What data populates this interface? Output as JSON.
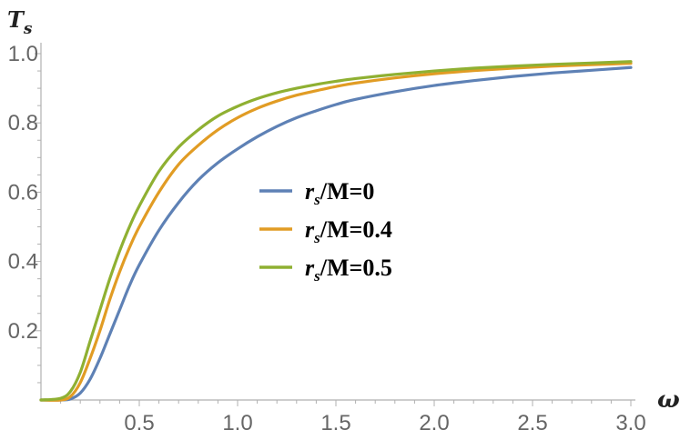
{
  "chart_data": {
    "type": "line",
    "ylabel": "T",
    "ylabel_sub": "s",
    "xlabel": "ω",
    "xlim": [
      0,
      3.0
    ],
    "ylim": [
      0,
      1.0
    ],
    "x_ticks": [
      {
        "value": 0.5,
        "label": "0.5"
      },
      {
        "value": 1.0,
        "label": "1.0"
      },
      {
        "value": 1.5,
        "label": "1.5"
      },
      {
        "value": 2.0,
        "label": "2.0"
      },
      {
        "value": 2.5,
        "label": "2.5"
      },
      {
        "value": 3.0,
        "label": "3.0"
      }
    ],
    "y_ticks": [
      {
        "value": 0.2,
        "label": "0.2"
      },
      {
        "value": 0.4,
        "label": "0.4"
      },
      {
        "value": 0.6,
        "label": "0.6"
      },
      {
        "value": 0.8,
        "label": "0.8"
      },
      {
        "value": 1.0,
        "label": "1.0"
      }
    ],
    "grid": false,
    "legend_position": "center",
    "series": [
      {
        "name": "r_s/M=0",
        "legend": {
          "var": "r",
          "sub": "s",
          "rest": "/M=0"
        },
        "color": "#5e81b5",
        "x": [
          0.0,
          0.1,
          0.15,
          0.2,
          0.25,
          0.3,
          0.35,
          0.4,
          0.45,
          0.5,
          0.6,
          0.7,
          0.8,
          0.9,
          1.0,
          1.1,
          1.2,
          1.3,
          1.4,
          1.5,
          1.6,
          1.8,
          2.0,
          2.2,
          2.4,
          2.6,
          2.8,
          3.0
        ],
        "y": [
          0.0,
          0.0,
          0.003,
          0.02,
          0.06,
          0.12,
          0.19,
          0.26,
          0.33,
          0.39,
          0.49,
          0.57,
          0.635,
          0.685,
          0.725,
          0.76,
          0.79,
          0.815,
          0.835,
          0.853,
          0.868,
          0.89,
          0.908,
          0.922,
          0.934,
          0.944,
          0.952,
          0.96
        ]
      },
      {
        "name": "r_s/M=0.4",
        "legend": {
          "var": "r",
          "sub": "s",
          "rest": "/M=0.4"
        },
        "color": "#e19c24",
        "x": [
          0.0,
          0.1,
          0.15,
          0.2,
          0.25,
          0.3,
          0.35,
          0.4,
          0.45,
          0.5,
          0.6,
          0.7,
          0.8,
          0.9,
          1.0,
          1.1,
          1.2,
          1.3,
          1.4,
          1.5,
          1.6,
          1.8,
          2.0,
          2.2,
          2.4,
          2.6,
          2.8,
          3.0
        ],
        "y": [
          0.0,
          0.0,
          0.01,
          0.05,
          0.12,
          0.2,
          0.29,
          0.37,
          0.44,
          0.5,
          0.6,
          0.68,
          0.735,
          0.78,
          0.815,
          0.842,
          0.863,
          0.88,
          0.893,
          0.905,
          0.915,
          0.93,
          0.942,
          0.951,
          0.958,
          0.964,
          0.968,
          0.972
        ]
      },
      {
        "name": "r_s/M=0.5",
        "legend": {
          "var": "r",
          "sub": "s",
          "rest": "/M=0.5"
        },
        "color": "#8fb032",
        "x": [
          0.0,
          0.1,
          0.15,
          0.2,
          0.25,
          0.3,
          0.35,
          0.4,
          0.45,
          0.5,
          0.6,
          0.7,
          0.8,
          0.9,
          1.0,
          1.1,
          1.2,
          1.3,
          1.4,
          1.5,
          1.6,
          1.8,
          2.0,
          2.2,
          2.4,
          2.6,
          2.8,
          3.0
        ],
        "y": [
          0.0,
          0.005,
          0.025,
          0.08,
          0.17,
          0.26,
          0.35,
          0.43,
          0.5,
          0.56,
          0.66,
          0.73,
          0.78,
          0.82,
          0.848,
          0.87,
          0.887,
          0.9,
          0.911,
          0.92,
          0.928,
          0.94,
          0.95,
          0.958,
          0.964,
          0.969,
          0.973,
          0.977
        ]
      }
    ]
  }
}
